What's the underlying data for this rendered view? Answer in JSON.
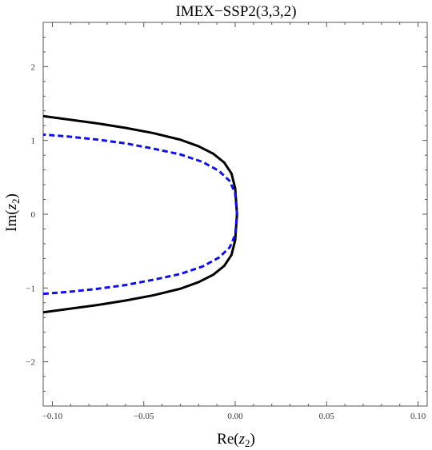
{
  "chart_data": {
    "type": "line",
    "title": "IMEX−SSP2(3,3,2)",
    "xlabel": {
      "prefix": "Re(",
      "var": "z",
      "sub": "2",
      "suffix": ")"
    },
    "ylabel": {
      "prefix": "Im(",
      "var": "z",
      "sub": "2",
      "suffix": ")"
    },
    "xlim": [
      -0.105,
      0.105
    ],
    "ylim": [
      -2.6,
      2.6
    ],
    "x_ticks": [
      -0.1,
      -0.05,
      0.0,
      0.05,
      0.1
    ],
    "x_tick_labels": [
      "−0.10",
      "−0.05",
      "0.00",
      "0.05",
      "0.10"
    ],
    "y_ticks": [
      -2,
      -1,
      0,
      1,
      2
    ],
    "y_tick_labels": [
      "−2",
      "−1",
      "0",
      "1",
      "2"
    ],
    "grid": false,
    "series": [
      {
        "style": "solid",
        "color": "#000000",
        "points": [
          [
            -0.105,
            -1.33
          ],
          [
            -0.09,
            -1.28
          ],
          [
            -0.075,
            -1.23
          ],
          [
            -0.06,
            -1.17
          ],
          [
            -0.045,
            -1.1
          ],
          [
            -0.03,
            -1.01
          ],
          [
            -0.02,
            -0.92
          ],
          [
            -0.012,
            -0.82
          ],
          [
            -0.006,
            -0.7
          ],
          [
            -0.002,
            -0.55
          ],
          [
            0.0,
            -0.35
          ],
          [
            0.001,
            0.0
          ],
          [
            0.0,
            0.35
          ],
          [
            -0.002,
            0.55
          ],
          [
            -0.006,
            0.7
          ],
          [
            -0.012,
            0.82
          ],
          [
            -0.02,
            0.92
          ],
          [
            -0.03,
            1.01
          ],
          [
            -0.045,
            1.1
          ],
          [
            -0.06,
            1.17
          ],
          [
            -0.075,
            1.23
          ],
          [
            -0.09,
            1.28
          ],
          [
            -0.105,
            1.33
          ]
        ]
      },
      {
        "style": "dashed",
        "color": "#1111dd",
        "points": [
          [
            -0.105,
            -1.08
          ],
          [
            -0.09,
            -1.05
          ],
          [
            -0.075,
            -1.01
          ],
          [
            -0.06,
            -0.96
          ],
          [
            -0.045,
            -0.89
          ],
          [
            -0.03,
            -0.81
          ],
          [
            -0.018,
            -0.71
          ],
          [
            -0.009,
            -0.59
          ],
          [
            -0.003,
            -0.45
          ],
          [
            0.0,
            -0.28
          ],
          [
            0.001,
            0.0
          ],
          [
            0.0,
            0.28
          ],
          [
            -0.003,
            0.45
          ],
          [
            -0.009,
            0.59
          ],
          [
            -0.018,
            0.71
          ],
          [
            -0.03,
            0.81
          ],
          [
            -0.045,
            0.89
          ],
          [
            -0.06,
            0.96
          ],
          [
            -0.075,
            1.01
          ],
          [
            -0.09,
            1.05
          ],
          [
            -0.105,
            1.08
          ]
        ]
      }
    ]
  }
}
